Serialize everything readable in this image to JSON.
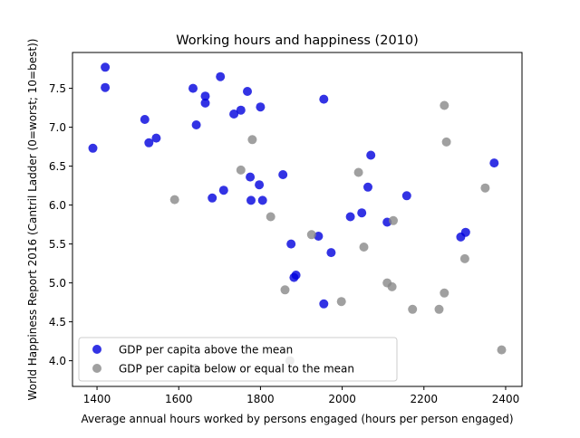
{
  "chart_data": {
    "type": "scatter",
    "title": "Working hours and happiness (2010)",
    "xlabel": "Average annual hours worked by persons engaged (hours per person engaged)",
    "ylabel": "World Happiness Report 2016 (Cantril Ladder (0=worst; 10=best))",
    "xlim": [
      1340,
      2440
    ],
    "ylim": [
      3.67,
      7.96
    ],
    "xticks": [
      1400,
      1600,
      1800,
      2000,
      2200,
      2400
    ],
    "yticks": [
      4.0,
      4.5,
      5.0,
      5.5,
      6.0,
      6.5,
      7.0,
      7.5
    ],
    "grid": false,
    "legend_position": "lower-left",
    "series": [
      {
        "name": "GDP per capita above the mean",
        "color": "#0000dd",
        "points": [
          [
            1390,
            6.73
          ],
          [
            1420,
            7.77
          ],
          [
            1420,
            7.51
          ],
          [
            1517,
            7.1
          ],
          [
            1527,
            6.8
          ],
          [
            1545,
            6.86
          ],
          [
            1635,
            7.5
          ],
          [
            1643,
            7.03
          ],
          [
            1665,
            7.4
          ],
          [
            1665,
            7.31
          ],
          [
            1682,
            6.09
          ],
          [
            1702,
            7.65
          ],
          [
            1710,
            6.19
          ],
          [
            1735,
            7.17
          ],
          [
            1752,
            7.22
          ],
          [
            1768,
            7.46
          ],
          [
            1775,
            6.36
          ],
          [
            1777,
            6.06
          ],
          [
            1797,
            6.26
          ],
          [
            1800,
            7.26
          ],
          [
            1805,
            6.06
          ],
          [
            1855,
            6.39
          ],
          [
            1875,
            5.5
          ],
          [
            1882,
            5.07
          ],
          [
            1887,
            5.1
          ],
          [
            1942,
            5.6
          ],
          [
            1955,
            7.36
          ],
          [
            1955,
            4.73
          ],
          [
            1973,
            5.39
          ],
          [
            2020,
            5.85
          ],
          [
            2048,
            5.9
          ],
          [
            2063,
            6.23
          ],
          [
            2070,
            6.64
          ],
          [
            2110,
            5.78
          ],
          [
            2158,
            6.12
          ],
          [
            2290,
            5.59
          ],
          [
            2302,
            5.65
          ],
          [
            2372,
            6.54
          ]
        ]
      },
      {
        "name": "GDP per capita below or equal to the mean",
        "color": "#888888",
        "points": [
          [
            1590,
            6.07
          ],
          [
            1640,
            3.9
          ],
          [
            1752,
            6.45
          ],
          [
            1780,
            6.84
          ],
          [
            1825,
            5.85
          ],
          [
            1860,
            4.91
          ],
          [
            1872,
            4.0
          ],
          [
            1925,
            5.62
          ],
          [
            1998,
            4.76
          ],
          [
            2040,
            6.42
          ],
          [
            2053,
            5.46
          ],
          [
            2110,
            5.0
          ],
          [
            2122,
            4.95
          ],
          [
            2125,
            5.8
          ],
          [
            2172,
            4.66
          ],
          [
            2237,
            4.66
          ],
          [
            2250,
            7.28
          ],
          [
            2250,
            4.87
          ],
          [
            2255,
            6.81
          ],
          [
            2300,
            5.31
          ],
          [
            2350,
            6.22
          ],
          [
            2390,
            4.14
          ]
        ]
      }
    ]
  }
}
